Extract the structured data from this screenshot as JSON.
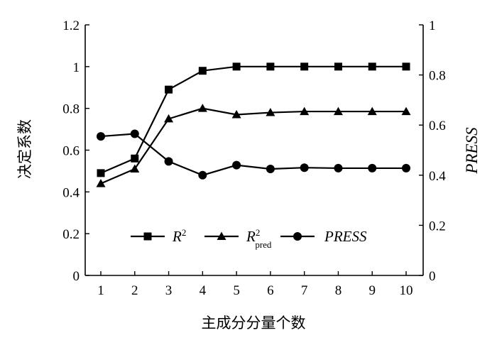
{
  "chart_data": {
    "type": "line",
    "categories": [
      "1",
      "2",
      "3",
      "4",
      "5",
      "6",
      "7",
      "8",
      "9",
      "10"
    ],
    "xlabel": "主成分分量个数",
    "ylabel_left": "决定系数",
    "ylabel_right": "PRESS",
    "ylim_left": [
      0,
      1.2
    ],
    "ylim_right": [
      0,
      1
    ],
    "yticks_left": [
      "0",
      "0.2",
      "0.4",
      "0.6",
      "0.8",
      "1",
      "1.2"
    ],
    "yticks_right": [
      "0",
      "0.2",
      "0.4",
      "0.6",
      "0.8",
      "1"
    ],
    "grid": false,
    "legend_position": "bottom-center",
    "series": [
      {
        "name": "R²",
        "axis": "left",
        "marker": "square",
        "values": [
          0.49,
          0.56,
          0.89,
          0.98,
          1.0,
          1.0,
          1.0,
          1.0,
          1.0,
          1.0
        ]
      },
      {
        "name": "R²pred",
        "axis": "left",
        "marker": "triangle",
        "values": [
          0.44,
          0.51,
          0.75,
          0.8,
          0.77,
          0.78,
          0.785,
          0.785,
          0.785,
          0.785
        ]
      },
      {
        "name": "PRESS",
        "axis": "right",
        "marker": "circle",
        "values": [
          0.555,
          0.565,
          0.455,
          0.4,
          0.44,
          0.425,
          0.43,
          0.428,
          0.428,
          0.428
        ]
      }
    ],
    "legend": [
      {
        "main": "R",
        "sup": "2",
        "sub": ""
      },
      {
        "main": "R",
        "sup": "2",
        "sub": "pred"
      },
      {
        "main": "PRESS",
        "sup": "",
        "sub": ""
      }
    ]
  }
}
